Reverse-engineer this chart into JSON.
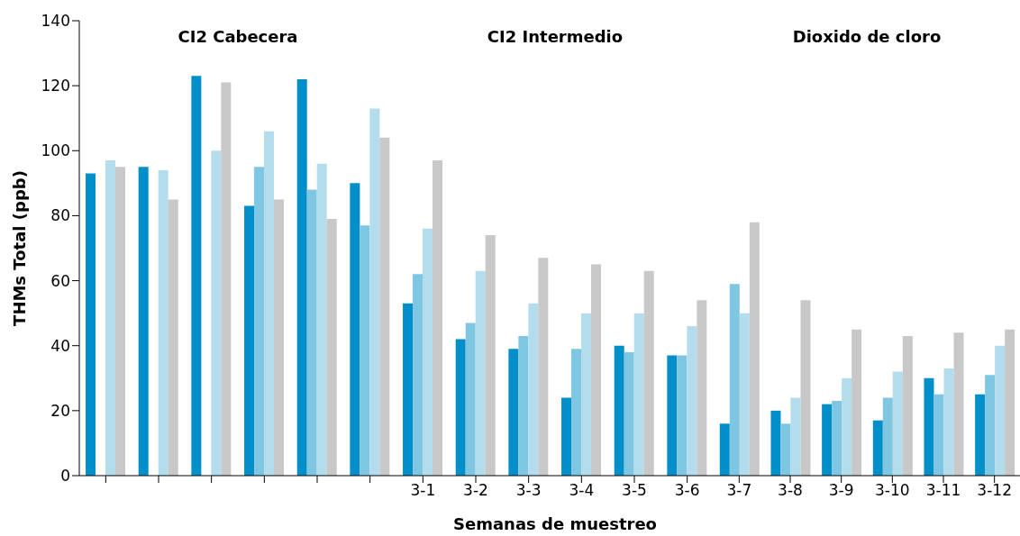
{
  "chart_data": [
    {
      "type": "bar",
      "title": "CI2 Cabecera",
      "ylabel": "THMs Total (ppb)",
      "categories": [
        null,
        null,
        null,
        null,
        null,
        null
      ],
      "ylim": [
        0,
        140
      ],
      "yticks": [
        0,
        20,
        40,
        60,
        80,
        100,
        120,
        140
      ],
      "tick_labels": "y",
      "series": [
        {
          "color": "#008fc8",
          "values": [
            93,
            95,
            123,
            83,
            122,
            90
          ]
        },
        {
          "color": "#7fc6e3",
          "values": [
            null,
            null,
            null,
            95,
            88,
            77
          ]
        },
        {
          "color": "#b3dced",
          "values": [
            97,
            94,
            100,
            106,
            96,
            113
          ]
        },
        {
          "color": "#c8c8c8",
          "values": [
            95,
            85,
            121,
            85,
            79,
            104
          ]
        }
      ]
    },
    {
      "type": "bar",
      "title": "CI2 Intermedio",
      "xlabel": "Semanas de muestreo",
      "categories": [
        "3-1",
        "3-2",
        "3-3",
        "3-4",
        "3-5",
        "3-6"
      ],
      "ylim": [
        0,
        140
      ],
      "tick_labels": "x",
      "series": [
        {
          "color": "#008fc8",
          "values": [
            53,
            42,
            39,
            24,
            40,
            37
          ]
        },
        {
          "color": "#7fc6e3",
          "values": [
            62,
            47,
            43,
            39,
            38,
            37
          ]
        },
        {
          "color": "#b3dced",
          "values": [
            76,
            63,
            53,
            50,
            50,
            46
          ]
        },
        {
          "color": "#c8c8c8",
          "values": [
            97,
            74,
            67,
            65,
            63,
            54
          ]
        }
      ]
    },
    {
      "type": "bar",
      "title": "Dioxido de cloro",
      "categories": [
        "3-7",
        "3-8",
        "3-9",
        "3-10",
        "3-11",
        "3-12"
      ],
      "ylim": [
        0,
        140
      ],
      "tick_labels": "x",
      "series": [
        {
          "color": "#008fc8",
          "values": [
            16,
            20,
            22,
            17,
            30,
            25
          ]
        },
        {
          "color": "#7fc6e3",
          "values": [
            59,
            16,
            23,
            24,
            25,
            31
          ]
        },
        {
          "color": "#b3dced",
          "values": [
            50,
            24,
            30,
            32,
            33,
            40
          ]
        },
        {
          "color": "#c8c8c8",
          "values": [
            78,
            54,
            45,
            43,
            44,
            45
          ]
        }
      ]
    }
  ]
}
